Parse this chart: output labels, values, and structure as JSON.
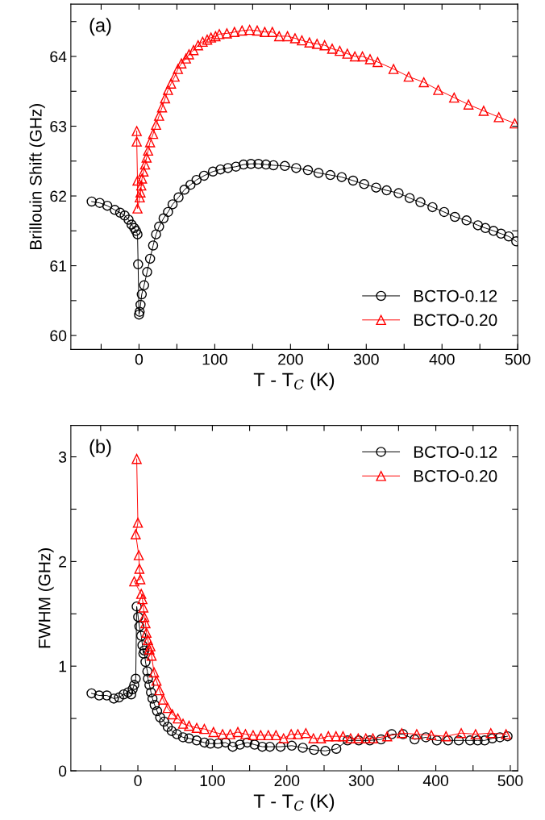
{
  "chart_data": [
    {
      "type": "line",
      "ylabel": "Brillouin Shift (GHz)",
      "xlabel": "T - T$_{C}$ (K)",
      "annotations": [
        "(a)"
      ],
      "legend": "bottom right",
      "line_style": "solid",
      "grid": false,
      "xlim": [
        -90,
        500
      ],
      "xticks": [
        {
          "value": -50,
          "label": null
        },
        0,
        {
          "value": 50,
          "label": null
        },
        100,
        {
          "value": 150,
          "label": null
        },
        200,
        {
          "value": 250,
          "label": null
        },
        300,
        {
          "value": 350,
          "label": null
        },
        400,
        {
          "value": 450,
          "label": null
        },
        500
      ],
      "ylim": [
        59.8,
        64.75
      ],
      "yticks": [
        60,
        {
          "value": 60.5,
          "label": null
        },
        61,
        {
          "value": 61.5,
          "label": null
        },
        62,
        {
          "value": 62.5,
          "label": null
        },
        63,
        {
          "value": 63.5,
          "label": null
        },
        64,
        {
          "value": 64.5,
          "label": null
        }
      ],
      "series": [
        {
          "name": "BCTO-0.12",
          "color": "#000000",
          "marker": "circle",
          "x": [
            -62.5,
            -51.8,
            -41.9,
            -32,
            -24.9,
            -19,
            -13.8,
            -9.9,
            -6.3,
            -4,
            -2,
            -1.2,
            0,
            0.8,
            2,
            3.6,
            6.7,
            10.7,
            14.6,
            18.6,
            22.5,
            26.5,
            32.4,
            38.3,
            44.3,
            52.2,
            60,
            68,
            75.9,
            85.8,
            97.6,
            107.5,
            117.4,
            128,
            138,
            147.8,
            157.7,
            167.6,
            177.5,
            192.5,
            207.5,
            223,
            237,
            252.6,
            267.6,
            282.6,
            297.2,
            313,
            326.9,
            342.7,
            357.3,
            371.5,
            387.4,
            402.8,
            417,
            432.4,
            447.4,
            457.3,
            468,
            477.9,
            488.1,
            498
          ],
          "values": [
            61.92,
            61.9,
            61.86,
            61.8,
            61.76,
            61.72,
            61.66,
            61.59,
            61.54,
            61.5,
            61.45,
            61.02,
            60.3,
            60.34,
            60.44,
            60.59,
            60.72,
            60.91,
            61.1,
            61.29,
            61.45,
            61.56,
            61.68,
            61.77,
            61.88,
            61.98,
            62.09,
            62.16,
            62.23,
            62.29,
            62.35,
            62.38,
            62.4,
            62.42,
            62.45,
            62.46,
            62.46,
            62.45,
            62.44,
            62.43,
            62.4,
            62.37,
            62.33,
            62.3,
            62.27,
            62.22,
            62.17,
            62.12,
            62.08,
            62.04,
            61.97,
            61.91,
            61.84,
            61.77,
            61.7,
            61.65,
            61.58,
            61.54,
            61.5,
            61.46,
            61.42,
            61.35
          ]
        },
        {
          "name": "BCTO-0.20",
          "color": "#ff0000",
          "marker": "triangle",
          "x": [
            -3,
            -3,
            -2,
            -2,
            1,
            2,
            3,
            4,
            6,
            8,
            10,
            12,
            14.6,
            18.6,
            22.5,
            26.5,
            30.4,
            34.4,
            38.3,
            42.3,
            47,
            51.4,
            56,
            62,
            66,
            72,
            78,
            84,
            90,
            95,
            101,
            106,
            116,
            126,
            136,
            146,
            156,
            166,
            176,
            185,
            196,
            206,
            215,
            225,
            235,
            245,
            255,
            265,
            275,
            285,
            295,
            305,
            315,
            336,
            356,
            376,
            395,
            416,
            435,
            455,
            475,
            496
          ],
          "values": [
            62.93,
            62.78,
            62.22,
            61.82,
            61.98,
            62.05,
            62.15,
            62.25,
            62.35,
            62.45,
            62.55,
            62.65,
            62.77,
            62.89,
            63.02,
            63.15,
            63.27,
            63.4,
            63.52,
            63.61,
            63.71,
            63.82,
            63.9,
            63.97,
            64.03,
            64.09,
            64.16,
            64.21,
            64.24,
            64.27,
            64.29,
            64.32,
            64.33,
            64.35,
            64.37,
            64.38,
            64.37,
            64.35,
            64.35,
            64.29,
            64.29,
            64.26,
            64.23,
            64.2,
            64.18,
            64.16,
            64.11,
            64.08,
            64.04,
            64.0,
            64.0,
            63.96,
            63.92,
            63.82,
            63.71,
            63.63,
            63.52,
            63.41,
            63.31,
            63.22,
            63.13,
            63.04
          ]
        }
      ]
    },
    {
      "type": "line",
      "ylabel": "FWHM (GHz)",
      "xlabel": "T - T$_{C}$ (K)",
      "annotations": [
        "(b)"
      ],
      "legend": "top right",
      "line_style": "solid",
      "grid": false,
      "xlim": [
        -90,
        510
      ],
      "xticks": [
        {
          "value": -50,
          "label": null
        },
        0,
        {
          "value": 50,
          "label": null
        },
        100,
        {
          "value": 150,
          "label": null
        },
        200,
        {
          "value": 250,
          "label": null
        },
        300,
        {
          "value": 350,
          "label": null
        },
        400,
        {
          "value": 450,
          "label": null
        },
        500
      ],
      "ylim": [
        0,
        3.3
      ],
      "yticks": [
        0,
        {
          "value": 0.5,
          "label": null
        },
        1,
        {
          "value": 1.5,
          "label": null
        },
        2,
        {
          "value": 2.5,
          "label": null
        },
        3
      ],
      "series": [
        {
          "name": "BCTO-0.12",
          "color": "#000000",
          "marker": "circle",
          "x": [
            -62.2,
            -52,
            -41.7,
            -32.3,
            -25.4,
            -19.2,
            -13.1,
            -9,
            -7,
            -4.9,
            -2.9,
            -1.6,
            0.4,
            2,
            4.5,
            6.1,
            7.4,
            8.6,
            10.2,
            12.7,
            13.5,
            15.5,
            17.6,
            19.6,
            22.5,
            25.8,
            29.9,
            35.2,
            40.1,
            45.4,
            52.4,
            60.6,
            68.7,
            79,
            89.2,
            97.4,
            107.6,
            117.8,
            127.3,
            137,
            146.9,
            156.7,
            167,
            177.2,
            191.5,
            206.6,
            221.4,
            236.5,
            251.6,
            266.4,
            281.5,
            296.6,
            311.4,
            326.5,
            340.8,
            356,
            371.5,
            386.7,
            401.4,
            416.5,
            430.8,
            446,
            456.2,
            465.6,
            475.9,
            486.1,
            496.3
          ],
          "values": [
            0.74,
            0.72,
            0.72,
            0.69,
            0.7,
            0.73,
            0.75,
            0.73,
            0.78,
            0.82,
            0.88,
            1.57,
            1.47,
            1.38,
            1.29,
            1.2,
            1.12,
            1.15,
            1.04,
            0.95,
            0.88,
            0.82,
            0.75,
            0.69,
            0.63,
            0.57,
            0.51,
            0.47,
            0.42,
            0.38,
            0.35,
            0.32,
            0.31,
            0.29,
            0.27,
            0.26,
            0.26,
            0.27,
            0.23,
            0.25,
            0.27,
            0.25,
            0.23,
            0.23,
            0.23,
            0.24,
            0.22,
            0.2,
            0.19,
            0.21,
            0.29,
            0.29,
            0.29,
            0.3,
            0.35,
            0.35,
            0.3,
            0.32,
            0.29,
            0.29,
            0.29,
            0.29,
            0.29,
            0.29,
            0.31,
            0.32,
            0.33
          ]
        },
        {
          "name": "BCTO-0.20",
          "color": "#ff0000",
          "marker": "triangle",
          "x": [
            -1.6,
            0,
            -2.9,
            1.2,
            2,
            3.3,
            -4.9,
            4.5,
            6.1,
            7.4,
            8.6,
            10.2,
            11.5,
            13.5,
            15.5,
            16.8,
            18.4,
            21.7,
            25,
            29,
            34,
            40.1,
            46.2,
            53.6,
            60.6,
            68.7,
            79,
            89.2,
            101.5,
            113.7,
            124,
            134.2,
            144.4,
            154.7,
            164.9,
            175.1,
            185.4,
            195.6,
            205.8,
            214.8,
            225.5,
            235.7,
            245.9,
            255.7,
            266,
            275.4,
            285.6,
            295.8,
            306,
            315.5,
            334.7,
            354.3,
            374.4,
            394,
            413.7,
            434.1,
            453.4,
            473.8,
            494.3
          ],
          "values": [
            2.98,
            2.37,
            2.26,
            2.06,
            1.93,
            1.83,
            1.81,
            1.69,
            1.64,
            1.56,
            1.47,
            1.41,
            1.32,
            1.25,
            1.16,
            1.19,
            1.1,
            0.94,
            0.86,
            0.77,
            0.68,
            0.6,
            0.54,
            0.5,
            0.45,
            0.43,
            0.41,
            0.4,
            0.37,
            0.35,
            0.35,
            0.37,
            0.35,
            0.34,
            0.34,
            0.34,
            0.34,
            0.31,
            0.35,
            0.35,
            0.36,
            0.31,
            0.31,
            0.33,
            0.33,
            0.33,
            0.31,
            0.31,
            0.31,
            0.31,
            0.33,
            0.36,
            0.35,
            0.34,
            0.33,
            0.36,
            0.35,
            0.36,
            0.35
          ]
        }
      ]
    }
  ]
}
